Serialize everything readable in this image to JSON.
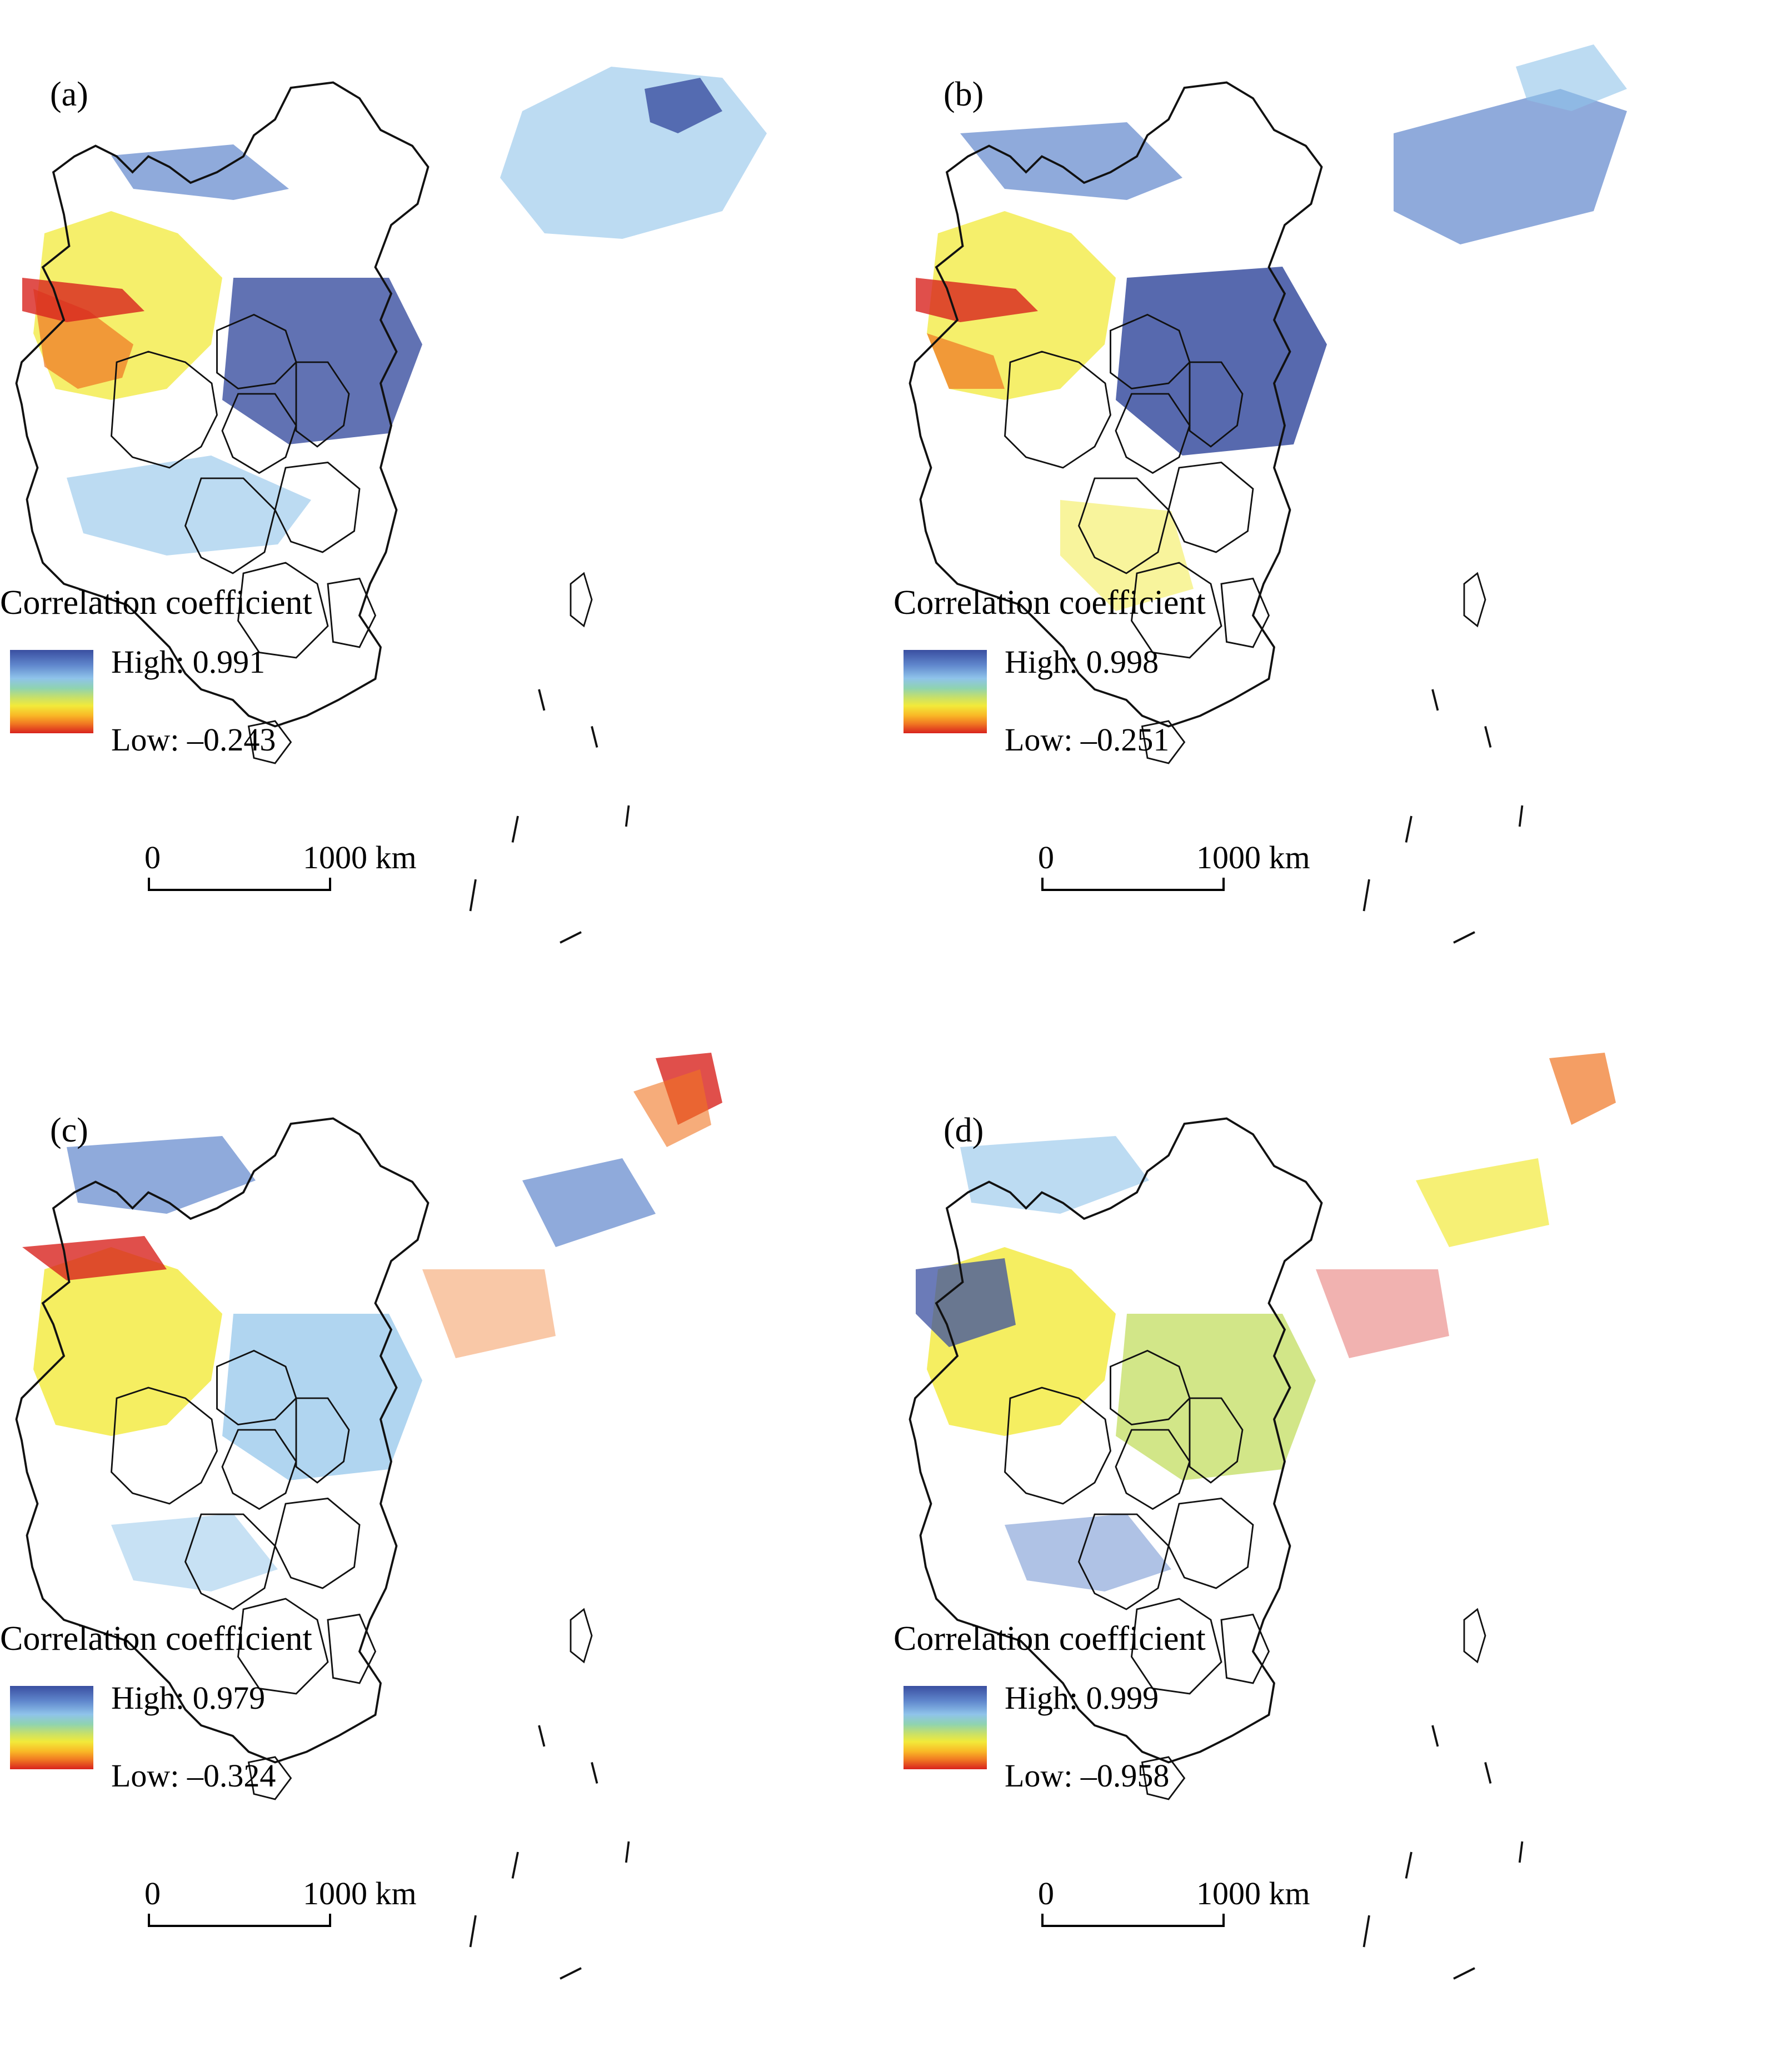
{
  "panels": [
    {
      "label": "(a)",
      "legend_title": "Correlation coefficient",
      "high": "High: 0.991",
      "low": "Low: –0.243",
      "scale_zero": "0",
      "scale_dist": "1000 km"
    },
    {
      "label": "(b)",
      "legend_title": "Correlation coefficient",
      "high": "High: 0.998",
      "low": "Low: –0.251",
      "scale_zero": "0",
      "scale_dist": "1000 km"
    },
    {
      "label": "(c)",
      "legend_title": "Correlation coefficient",
      "high": "High: 0.979",
      "low": "Low: –0.324",
      "scale_zero": "0",
      "scale_dist": "1000 km"
    },
    {
      "label": "(d)",
      "legend_title": "Correlation coefficient",
      "high": "High: 0.999",
      "low": "Low: –0.958",
      "scale_zero": "0",
      "scale_dist": "1000 km"
    }
  ],
  "colors": {
    "high": "#3a4fa0",
    "mid_high": "#8fc3ea",
    "mid": "#f2ea3a",
    "mid_low": "#f07522",
    "low": "#d8231e",
    "border": "#111111"
  }
}
